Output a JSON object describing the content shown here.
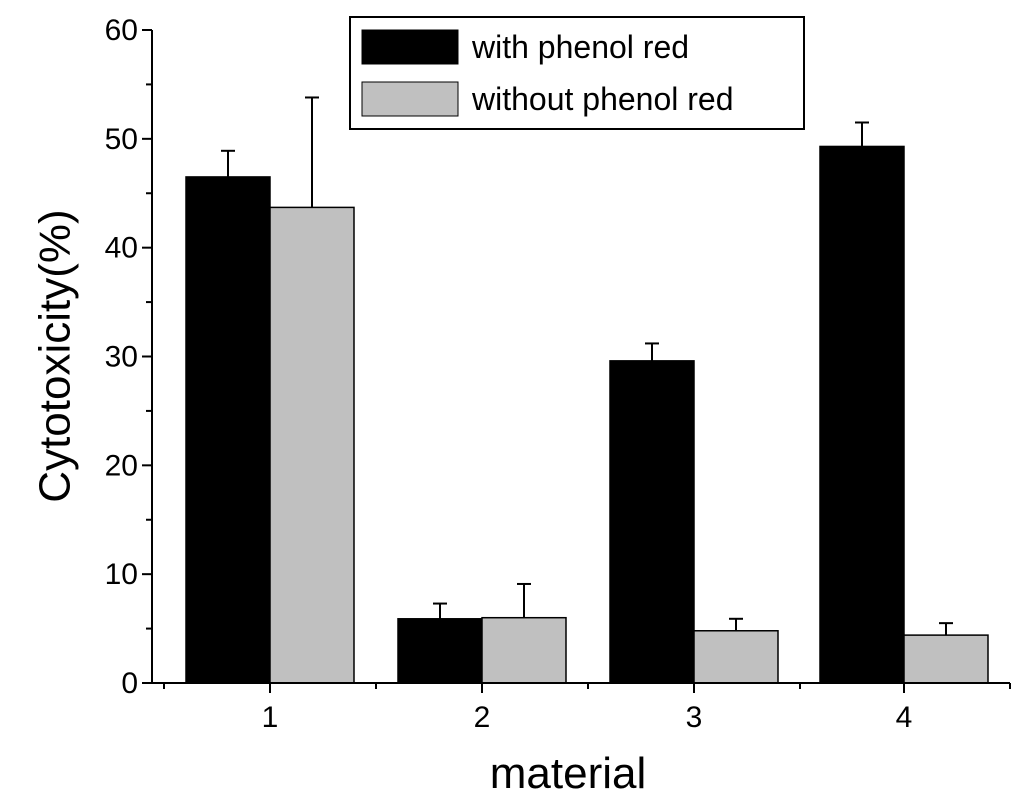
{
  "chart_data": {
    "type": "bar",
    "categories": [
      "1",
      "2",
      "3",
      "4"
    ],
    "series": [
      {
        "name": "with phenol red",
        "color": "#000000",
        "values": [
          46.5,
          5.9,
          29.6,
          49.3
        ],
        "errors": [
          2.4,
          1.4,
          1.6,
          2.2
        ]
      },
      {
        "name": "without phenol red",
        "color": "#c0c0c0",
        "values": [
          43.7,
          6.0,
          4.8,
          4.4
        ],
        "errors": [
          10.1,
          3.1,
          1.1,
          1.1
        ]
      }
    ],
    "xlabel": "material",
    "ylabel": "Cytotoxicity(%)",
    "ylim": [
      0,
      60
    ],
    "yticks": [
      0,
      10,
      20,
      30,
      40,
      50,
      60
    ],
    "grid": false,
    "legend_position": "top-right"
  }
}
